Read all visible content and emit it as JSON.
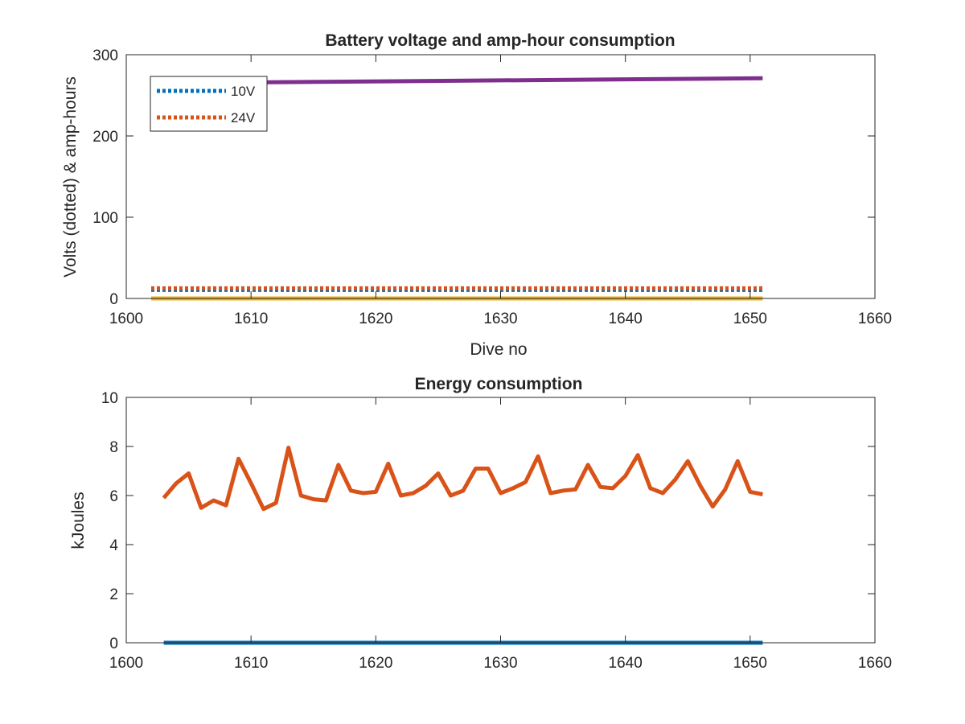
{
  "chart_data": [
    {
      "type": "line",
      "title": "Battery voltage and amp-hour consumption",
      "xlabel": "Dive no",
      "ylabel": "Volts (dotted) & amp-hours",
      "xlim": [
        1600,
        1660
      ],
      "ylim": [
        0,
        300
      ],
      "xticks": [
        1600,
        1610,
        1620,
        1630,
        1640,
        1650,
        1660
      ],
      "yticks": [
        0,
        100,
        200,
        300
      ],
      "legend_position": "top-left",
      "series": [
        {
          "name": "10V",
          "color": "#0072BD",
          "style": "dotted",
          "x": [
            1602,
            1651
          ],
          "y": [
            10.5,
            10.5
          ]
        },
        {
          "name": "24V",
          "color": "#D95319",
          "style": "dotted",
          "x": [
            1602,
            1651
          ],
          "y": [
            12.5,
            12.5
          ]
        },
        {
          "color": "#EDB120",
          "style": "solid",
          "x": [
            1602,
            1651
          ],
          "y": [
            0,
            0
          ]
        },
        {
          "color": "#7E2F8E",
          "style": "solid",
          "x": [
            1602,
            1651
          ],
          "y": [
            265,
            271
          ]
        }
      ]
    },
    {
      "type": "line",
      "title": "Energy consumption",
      "xlabel": "",
      "ylabel": "kJoules",
      "xlim": [
        1600,
        1660
      ],
      "ylim": [
        0,
        10
      ],
      "xticks": [
        1600,
        1610,
        1620,
        1630,
        1640,
        1650,
        1660
      ],
      "yticks": [
        0,
        2,
        4,
        6,
        8,
        10
      ],
      "series": [
        {
          "color": "#0072BD",
          "style": "solid",
          "x": [
            1603,
            1651
          ],
          "y": [
            0,
            0
          ]
        },
        {
          "color": "#D95319",
          "style": "solid",
          "x": [
            1603,
            1604,
            1605,
            1606,
            1607,
            1608,
            1609,
            1610,
            1611,
            1612,
            1613,
            1614,
            1615,
            1616,
            1617,
            1618,
            1619,
            1620,
            1621,
            1622,
            1623,
            1624,
            1625,
            1626,
            1627,
            1628,
            1629,
            1630,
            1631,
            1632,
            1633,
            1634,
            1635,
            1636,
            1637,
            1638,
            1639,
            1640,
            1641,
            1642,
            1643,
            1644,
            1645,
            1646,
            1647,
            1648,
            1649,
            1650,
            1651
          ],
          "y": [
            5.9,
            6.5,
            6.9,
            5.5,
            5.8,
            5.6,
            7.5,
            6.5,
            5.45,
            5.7,
            7.95,
            6.0,
            5.85,
            5.8,
            7.25,
            6.2,
            6.1,
            6.15,
            7.3,
            6.0,
            6.1,
            6.4,
            6.9,
            6.0,
            6.2,
            7.1,
            7.1,
            6.1,
            6.3,
            6.55,
            7.6,
            6.1,
            6.2,
            6.25,
            7.25,
            6.35,
            6.3,
            6.8,
            7.65,
            6.3,
            6.1,
            6.65,
            7.4,
            6.4,
            5.55,
            6.25,
            7.4,
            6.15,
            6.05
          ]
        }
      ]
    }
  ]
}
